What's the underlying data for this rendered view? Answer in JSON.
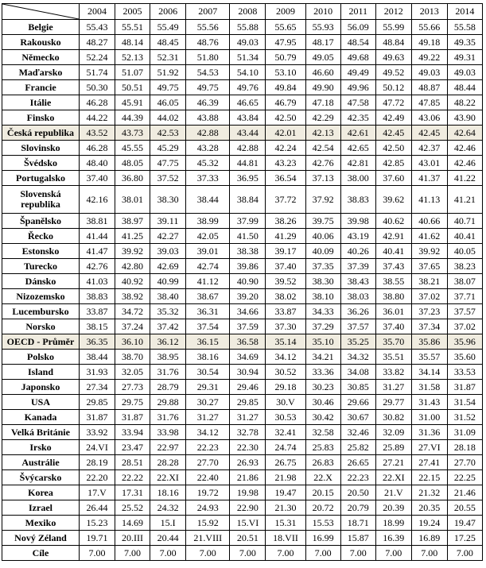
{
  "years": [
    "2004",
    "2005",
    "2006",
    "2007",
    "2008",
    "2009",
    "2010",
    "2011",
    "2012",
    "2013",
    "2014"
  ],
  "rows": [
    {
      "country": "Belgie",
      "values": [
        "55.43",
        "55.51",
        "55.49",
        "55.56",
        "55.88",
        "55.65",
        "55.93",
        "56.09",
        "55.99",
        "55.66",
        "55.58"
      ]
    },
    {
      "country": "Rakousko",
      "values": [
        "48.27",
        "48.14",
        "48.45",
        "48.76",
        "49.03",
        "47.95",
        "48.17",
        "48.54",
        "48.84",
        "49.18",
        "49.35"
      ]
    },
    {
      "country": "Německo",
      "values": [
        "52.24",
        "52.13",
        "52.31",
        "51.80",
        "51.34",
        "50.79",
        "49.05",
        "49.68",
        "49.63",
        "49.22",
        "49.31"
      ]
    },
    {
      "country": "Maďarsko",
      "values": [
        "51.74",
        "51.07",
        "51.92",
        "54.53",
        "54.10",
        "53.10",
        "46.60",
        "49.49",
        "49.52",
        "49.03",
        "49.03"
      ]
    },
    {
      "country": "Francie",
      "values": [
        "50.30",
        "50.51",
        "49.75",
        "49.75",
        "49.76",
        "49.84",
        "49.90",
        "49.96",
        "50.12",
        "48.87",
        "48.44"
      ]
    },
    {
      "country": "Itálie",
      "values": [
        "46.28",
        "45.91",
        "46.05",
        "46.39",
        "46.65",
        "46.79",
        "47.18",
        "47.58",
        "47.72",
        "47.85",
        "48.22"
      ]
    },
    {
      "country": "Finsko",
      "values": [
        "44.22",
        "44.39",
        "44.02",
        "43.88",
        "43.84",
        "42.50",
        "42.29",
        "42.35",
        "42.49",
        "43.06",
        "43.90"
      ]
    },
    {
      "country": "Česká republika",
      "values": [
        "43.52",
        "43.73",
        "42.53",
        "42.88",
        "43.44",
        "42.01",
        "42.13",
        "42.61",
        "42.45",
        "42.45",
        "42.64"
      ],
      "highlight": true
    },
    {
      "country": "Slovinsko",
      "values": [
        "46.28",
        "45.55",
        "45.29",
        "43.28",
        "42.88",
        "42.24",
        "42.54",
        "42.65",
        "42.50",
        "42.37",
        "42.46"
      ]
    },
    {
      "country": "Švédsko",
      "values": [
        "48.40",
        "48.05",
        "47.75",
        "45.32",
        "44.81",
        "43.23",
        "42.76",
        "42.81",
        "42.85",
        "43.01",
        "42.46"
      ]
    },
    {
      "country": "Portugalsko",
      "values": [
        "37.40",
        "36.80",
        "37.52",
        "37.33",
        "36.95",
        "36.54",
        "37.13",
        "38.00",
        "37.60",
        "41.37",
        "41.22"
      ]
    },
    {
      "country": "Slovenská republika",
      "values": [
        "42.16",
        "38.01",
        "38.30",
        "38.44",
        "38.84",
        "37.72",
        "37.92",
        "38.83",
        "39.62",
        "41.13",
        "41.21"
      ],
      "tall": true
    },
    {
      "country": "Španělsko",
      "values": [
        "38.81",
        "38.97",
        "39.11",
        "38.99",
        "37.99",
        "38.26",
        "39.75",
        "39.98",
        "40.62",
        "40.66",
        "40.71"
      ]
    },
    {
      "country": "Řecko",
      "values": [
        "41.44",
        "41.25",
        "42.27",
        "42.05",
        "41.50",
        "41.29",
        "40.06",
        "43.19",
        "42.91",
        "41.62",
        "40.41"
      ]
    },
    {
      "country": "Estonsko",
      "values": [
        "41.47",
        "39.92",
        "39.03",
        "39.01",
        "38.38",
        "39.17",
        "40.09",
        "40.26",
        "40.41",
        "39.92",
        "40.05"
      ]
    },
    {
      "country": "Turecko",
      "values": [
        "42.76",
        "42.80",
        "42.69",
        "42.74",
        "39.86",
        "37.40",
        "37.35",
        "37.39",
        "37.43",
        "37.65",
        "38.23"
      ]
    },
    {
      "country": "Dánsko",
      "values": [
        "41.03",
        "40.92",
        "40.99",
        "41.12",
        "40.90",
        "39.52",
        "38.30",
        "38.43",
        "38.55",
        "38.21",
        "38.07"
      ]
    },
    {
      "country": "Nizozemsko",
      "values": [
        "38.83",
        "38.92",
        "38.40",
        "38.67",
        "39.20",
        "38.02",
        "38.10",
        "38.03",
        "38.80",
        "37.02",
        "37.71"
      ]
    },
    {
      "country": "Lucembursko",
      "values": [
        "33.87",
        "34.72",
        "35.32",
        "36.31",
        "34.66",
        "33.87",
        "34.33",
        "36.26",
        "36.01",
        "37.23",
        "37.57"
      ]
    },
    {
      "country": "Norsko",
      "values": [
        "38.15",
        "37.24",
        "37.42",
        "37.54",
        "37.59",
        "37.30",
        "37.29",
        "37.57",
        "37.40",
        "37.34",
        "37.02"
      ]
    },
    {
      "country": "OECD - Průměr",
      "values": [
        "36.35",
        "36.10",
        "36.12",
        "36.15",
        "36.58",
        "35.14",
        "35.10",
        "35.25",
        "35.70",
        "35.86",
        "35.96"
      ],
      "highlight": true
    },
    {
      "country": "Polsko",
      "values": [
        "38.44",
        "38.70",
        "38.95",
        "38.16",
        "34.69",
        "34.12",
        "34.21",
        "34.32",
        "35.51",
        "35.57",
        "35.60"
      ]
    },
    {
      "country": "Island",
      "values": [
        "31.93",
        "32.05",
        "31.76",
        "30.54",
        "30.94",
        "30.52",
        "33.36",
        "34.08",
        "33.82",
        "34.14",
        "33.53"
      ]
    },
    {
      "country": "Japonsko",
      "values": [
        "27.34",
        "27.73",
        "28.79",
        "29.31",
        "29.46",
        "29.18",
        "30.23",
        "30.85",
        "31.27",
        "31.58",
        "31.87"
      ]
    },
    {
      "country": "USA",
      "values": [
        "29.85",
        "29.75",
        "29.88",
        "30.27",
        "29.85",
        "30.V",
        "30.46",
        "29.66",
        "29.77",
        "31.43",
        "31.54"
      ]
    },
    {
      "country": "Kanada",
      "values": [
        "31.87",
        "31.87",
        "31.76",
        "31.27",
        "31.27",
        "30.53",
        "30.42",
        "30.67",
        "30.82",
        "31.00",
        "31.52"
      ]
    },
    {
      "country": "Velká Británie",
      "values": [
        "33.92",
        "33.94",
        "33.98",
        "34.12",
        "32.78",
        "32.41",
        "32.58",
        "32.46",
        "32.09",
        "31.36",
        "31.09"
      ]
    },
    {
      "country": "Irsko",
      "values": [
        "24.VI",
        "23.47",
        "22.97",
        "22.23",
        "22.30",
        "24.74",
        "25.83",
        "25.82",
        "25.89",
        "27.VI",
        "28.18"
      ]
    },
    {
      "country": "Austrálie",
      "values": [
        "28.19",
        "28.51",
        "28.28",
        "27.70",
        "26.93",
        "26.75",
        "26.83",
        "26.65",
        "27.21",
        "27.41",
        "27.70"
      ]
    },
    {
      "country": "Švýcarsko",
      "values": [
        "22.20",
        "22.22",
        "22.XI",
        "22.40",
        "21.86",
        "21.98",
        "22.X",
        "22.23",
        "22.XI",
        "22.15",
        "22.25"
      ]
    },
    {
      "country": "Korea",
      "values": [
        "17.V",
        "17.31",
        "18.16",
        "19.72",
        "19.98",
        "19.47",
        "20.15",
        "20.50",
        "21.V",
        "21.32",
        "21.46"
      ]
    },
    {
      "country": "Izrael",
      "values": [
        "26.44",
        "25.52",
        "24.32",
        "24.93",
        "22.90",
        "21.30",
        "20.72",
        "20.79",
        "20.39",
        "20.35",
        "20.55"
      ]
    },
    {
      "country": "Mexiko",
      "values": [
        "15.23",
        "14.69",
        "15.I",
        "15.92",
        "15.VI",
        "15.31",
        "15.53",
        "18.71",
        "18.99",
        "19.24",
        "19.47"
      ]
    },
    {
      "country": "Nový Zéland",
      "values": [
        "19.71",
        "20.III",
        "20.44",
        "21.VIII",
        "20.51",
        "18.VII",
        "16.99",
        "15.87",
        "16.39",
        "16.89",
        "17.25"
      ]
    },
    {
      "country": "Cíle",
      "values": [
        "7.00",
        "7.00",
        "7.00",
        "7.00",
        "7.00",
        "7.00",
        "7.00",
        "7.00",
        "7.00",
        "7.00",
        "7.00"
      ]
    }
  ]
}
